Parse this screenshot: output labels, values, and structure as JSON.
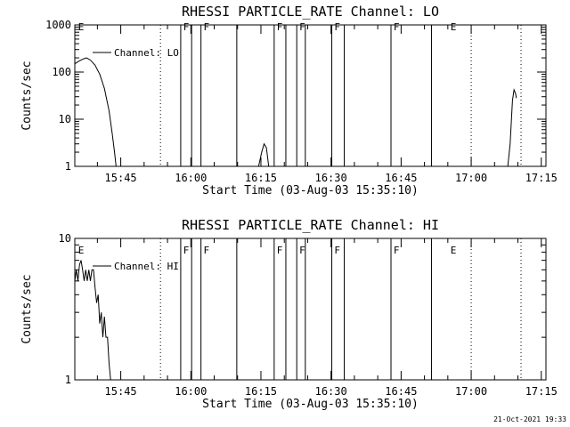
{
  "chart_data": [
    {
      "type": "line",
      "title": "RHESSI PARTICLE_RATE Channel: LO",
      "xlabel": "Start Time (03-Aug-03 15:35:10)",
      "ylabel": "Counts/sec",
      "x_ticks": [
        "15:45",
        "16:00",
        "16:15",
        "16:30",
        "16:45",
        "17:00",
        "17:15"
      ],
      "y_scale": "log",
      "y_ticks": [
        "1",
        "10",
        "100",
        "1000"
      ],
      "ylim": [
        1,
        1000
      ],
      "xlim": [
        "15:35:10",
        "17:16:00"
      ],
      "legend": "Channel: LO",
      "series": [
        {
          "name": "Channel: LO",
          "points": [
            [
              "15:35:10",
              150
            ],
            [
              "15:36:00",
              170
            ],
            [
              "15:37:00",
              190
            ],
            [
              "15:37:40",
              200
            ],
            [
              "15:38:30",
              180
            ],
            [
              "15:39:30",
              140
            ],
            [
              "15:40:30",
              90
            ],
            [
              "15:41:30",
              45
            ],
            [
              "15:42:30",
              15
            ],
            [
              "15:43:10",
              5
            ],
            [
              "15:43:40",
              2
            ],
            [
              "15:44:00",
              1
            ],
            [
              null,
              null
            ],
            [
              "16:14:30",
              1
            ],
            [
              "16:15:10",
              2
            ],
            [
              "16:15:40",
              3
            ],
            [
              "16:16:10",
              2.5
            ],
            [
              "16:16:40",
              1
            ],
            [
              null,
              null
            ],
            [
              "17:07:50",
              1
            ],
            [
              "17:08:20",
              3
            ],
            [
              "17:08:50",
              25
            ],
            [
              "17:09:10",
              42
            ],
            [
              "17:09:30",
              35
            ],
            [
              "17:09:40",
              28
            ]
          ]
        }
      ],
      "event_lines": {
        "solid": [
          "15:57:50",
          "16:00:10",
          "16:02:10",
          "16:09:50",
          "16:17:50",
          "16:20:20",
          "16:22:40",
          "16:24:30",
          "16:30:10",
          "16:32:50",
          "16:42:50",
          "16:51:30"
        ],
        "dotted": [
          "15:53:30",
          "17:00:00",
          "17:10:40"
        ]
      },
      "flags": [
        {
          "label": "E",
          "time": "15:35:30"
        },
        {
          "label": "F",
          "time": "15:58:00"
        },
        {
          "label": "F",
          "time": "16:02:20"
        },
        {
          "label": "F",
          "time": "16:18:00"
        },
        {
          "label": "F",
          "time": "16:22:50"
        },
        {
          "label": "F",
          "time": "16:30:20"
        },
        {
          "label": "F",
          "time": "16:43:00"
        },
        {
          "label": "E",
          "time": "16:55:10"
        }
      ]
    },
    {
      "type": "line",
      "title": "RHESSI PARTICLE_RATE Channel: HI",
      "xlabel": "Start Time (03-Aug-03 15:35:10)",
      "ylabel": "Counts/sec",
      "x_ticks": [
        "15:45",
        "16:00",
        "16:15",
        "16:30",
        "16:45",
        "17:00",
        "17:15"
      ],
      "y_scale": "log",
      "y_ticks": [
        "1",
        "10"
      ],
      "ylim": [
        1,
        10
      ],
      "xlim": [
        "15:35:10",
        "17:16:00"
      ],
      "legend": "Channel: HI",
      "series": [
        {
          "name": "Channel: HI",
          "points": [
            [
              "15:35:10",
              5
            ],
            [
              "15:35:30",
              6
            ],
            [
              "15:35:50",
              5
            ],
            [
              "15:36:10",
              6.5
            ],
            [
              "15:36:30",
              7
            ],
            [
              "15:36:50",
              6
            ],
            [
              "15:37:10",
              5
            ],
            [
              "15:37:30",
              6
            ],
            [
              "15:37:50",
              5
            ],
            [
              "15:38:10",
              6
            ],
            [
              "15:38:30",
              5
            ],
            [
              "15:38:50",
              6
            ],
            [
              "15:39:10",
              6
            ],
            [
              "15:39:30",
              4.5
            ],
            [
              "15:39:50",
              3.5
            ],
            [
              "15:40:10",
              4
            ],
            [
              "15:40:30",
              2.5
            ],
            [
              "15:40:50",
              3
            ],
            [
              "15:41:10",
              2
            ],
            [
              "15:41:30",
              2.8
            ],
            [
              "15:41:50",
              2
            ],
            [
              "15:42:10",
              2
            ],
            [
              "15:42:30",
              1.3
            ],
            [
              "15:42:50",
              1
            ]
          ]
        }
      ],
      "event_lines": {
        "solid": [
          "15:57:50",
          "16:00:10",
          "16:02:10",
          "16:09:50",
          "16:17:50",
          "16:20:20",
          "16:22:40",
          "16:24:30",
          "16:30:10",
          "16:32:50",
          "16:42:50",
          "16:51:30"
        ],
        "dotted": [
          "15:53:30",
          "17:00:00",
          "17:10:40"
        ]
      },
      "flags": [
        {
          "label": "E",
          "time": "15:35:30"
        },
        {
          "label": "F",
          "time": "15:58:00"
        },
        {
          "label": "F",
          "time": "16:02:20"
        },
        {
          "label": "F",
          "time": "16:18:00"
        },
        {
          "label": "F",
          "time": "16:22:50"
        },
        {
          "label": "F",
          "time": "16:30:20"
        },
        {
          "label": "F",
          "time": "16:43:00"
        },
        {
          "label": "E",
          "time": "16:55:10"
        }
      ]
    }
  ],
  "footer": {
    "timestamp": "21-Oct-2021 19:33"
  },
  "colors": {
    "background": "#ffffff",
    "foreground": "#000000"
  }
}
